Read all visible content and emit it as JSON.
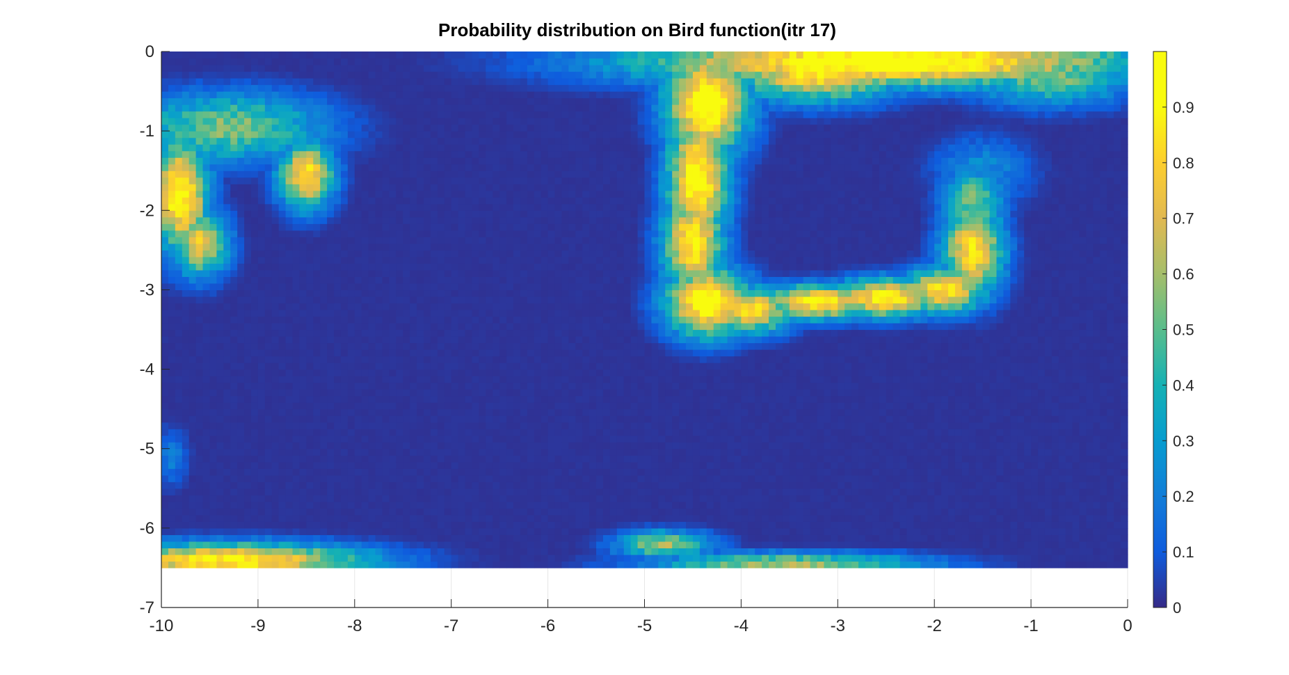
{
  "chart_data": {
    "type": "heatmap",
    "title": "Probability distribution on Bird function(itr 17)",
    "xlabel": "",
    "ylabel": "",
    "xlim": [
      -10,
      0
    ],
    "ylim": [
      -7,
      0
    ],
    "x_ticks": [
      "-10",
      "-9",
      "-8",
      "-7",
      "-6",
      "-5",
      "-4",
      "-3",
      "-2",
      "-1",
      "0"
    ],
    "y_ticks": [
      "0",
      "-1",
      "-2",
      "-3",
      "-4",
      "-5",
      "-6",
      "-7"
    ],
    "colorbar": {
      "range": [
        0,
        1
      ],
      "ticks": [
        "0",
        "0.1",
        "0.2",
        "0.3",
        "0.4",
        "0.5",
        "0.6",
        "0.7",
        "0.8",
        "0.9"
      ],
      "colormap": "parula"
    },
    "data_region": {
      "x": [
        -10,
        0
      ],
      "y": [
        -6.5,
        0
      ]
    },
    "background_value": 0.02,
    "features": [
      {
        "kind": "blob",
        "x": -4.35,
        "y": -0.65,
        "sx": 0.3,
        "sy": 0.45,
        "value": 1.0
      },
      {
        "kind": "blob",
        "x": -2.5,
        "y": -0.12,
        "sx": 1.8,
        "sy": 0.22,
        "value": 1.0
      },
      {
        "kind": "blob",
        "x": -3.2,
        "y": -0.25,
        "sx": 0.6,
        "sy": 0.25,
        "value": 0.9
      },
      {
        "kind": "blob",
        "x": -0.8,
        "y": -0.3,
        "sx": 0.6,
        "sy": 0.25,
        "value": 0.55
      },
      {
        "kind": "blob",
        "x": -4.45,
        "y": -1.6,
        "sx": 0.22,
        "sy": 0.6,
        "value": 0.95
      },
      {
        "kind": "blob",
        "x": -4.5,
        "y": -2.4,
        "sx": 0.22,
        "sy": 0.45,
        "value": 0.9
      },
      {
        "kind": "blob",
        "x": -4.35,
        "y": -3.15,
        "sx": 0.3,
        "sy": 0.3,
        "value": 1.0
      },
      {
        "kind": "blob",
        "x": -3.9,
        "y": -3.25,
        "sx": 0.3,
        "sy": 0.2,
        "value": 0.85
      },
      {
        "kind": "blob",
        "x": -3.2,
        "y": -3.15,
        "sx": 0.4,
        "sy": 0.15,
        "value": 0.9
      },
      {
        "kind": "blob",
        "x": -2.5,
        "y": -3.1,
        "sx": 0.4,
        "sy": 0.17,
        "value": 0.9
      },
      {
        "kind": "blob",
        "x": -1.9,
        "y": -3.0,
        "sx": 0.3,
        "sy": 0.2,
        "value": 0.85
      },
      {
        "kind": "blob",
        "x": -1.6,
        "y": -2.5,
        "sx": 0.22,
        "sy": 0.4,
        "value": 0.85
      },
      {
        "kind": "blob",
        "x": -1.6,
        "y": -1.9,
        "sx": 0.22,
        "sy": 0.3,
        "value": 0.55
      },
      {
        "kind": "blob",
        "x": -1.5,
        "y": -1.5,
        "sx": 0.35,
        "sy": 0.3,
        "value": 0.25
      },
      {
        "kind": "blob",
        "x": -9.3,
        "y": -0.95,
        "sx": 0.7,
        "sy": 0.3,
        "value": 0.55
      },
      {
        "kind": "blob",
        "x": -9.8,
        "y": -1.8,
        "sx": 0.2,
        "sy": 0.5,
        "value": 0.95
      },
      {
        "kind": "blob",
        "x": -9.6,
        "y": -2.4,
        "sx": 0.2,
        "sy": 0.3,
        "value": 0.75
      },
      {
        "kind": "blob",
        "x": -8.5,
        "y": -1.55,
        "sx": 0.2,
        "sy": 0.3,
        "value": 0.85
      },
      {
        "kind": "blob",
        "x": -9.9,
        "y": -5.1,
        "sx": 0.12,
        "sy": 0.25,
        "value": 0.2
      },
      {
        "kind": "blob",
        "x": -9.3,
        "y": -6.4,
        "sx": 1.0,
        "sy": 0.15,
        "value": 0.9
      },
      {
        "kind": "blob",
        "x": -4.8,
        "y": -6.2,
        "sx": 0.35,
        "sy": 0.12,
        "value": 0.6
      },
      {
        "kind": "blob",
        "x": -3.5,
        "y": -6.45,
        "sx": 1.0,
        "sy": 0.1,
        "value": 0.6
      }
    ]
  }
}
